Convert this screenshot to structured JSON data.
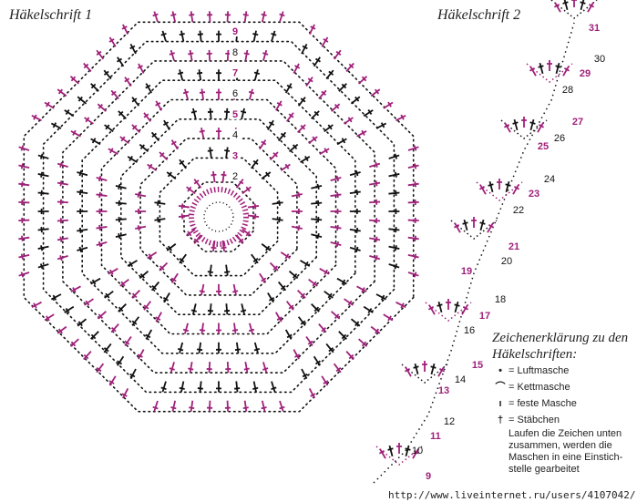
{
  "titles": {
    "chart1": "Häkelschrift 1",
    "chart2": "Häkelschrift 2"
  },
  "colors": {
    "odd_rows": "#a0207a",
    "even_rows": "#111111"
  },
  "chart1": {
    "row_labels": [
      "2",
      "3",
      "4",
      "5",
      "6",
      "7",
      "8",
      "9"
    ]
  },
  "chart2": {
    "row_labels": [
      "9",
      "10",
      "11",
      "12",
      "13",
      "14",
      "15",
      "16",
      "17",
      "18",
      "19",
      "20",
      "21",
      "22",
      "23",
      "24",
      "25",
      "26",
      "27",
      "28",
      "29",
      "30",
      "31"
    ]
  },
  "legend": {
    "heading": "Zeichenerklärung zu den Häkelschriften:",
    "items": [
      {
        "symbol": "•",
        "label": "= Luftmasche"
      },
      {
        "symbol": "⌒",
        "label": "= Kettmasche"
      },
      {
        "symbol": "ı",
        "label": "= feste Masche"
      },
      {
        "symbol": "†",
        "label": "= Stäbchen"
      }
    ],
    "note": "Laufen die Zeichen unten zusammen, werden die Maschen in eine Einstich-stelle gearbeitet"
  },
  "watermark": "http://www.liveinternet.ru/users/4107042/"
}
